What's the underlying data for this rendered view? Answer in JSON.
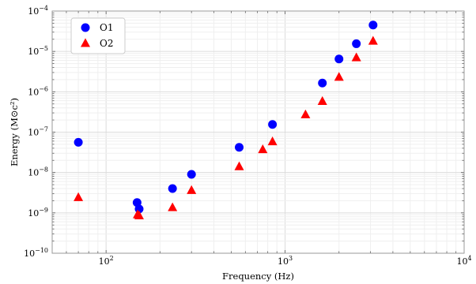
{
  "chart_data": {
    "type": "scatter",
    "title": "",
    "xlabel": "Frequency (Hz)",
    "ylabel": "Energy (M⊙c²)",
    "xscale": "log",
    "yscale": "log",
    "xlim": [
      50,
      10000
    ],
    "ylim": [
      1e-10,
      0.0001
    ],
    "x_tick_labels": [
      {
        "value": 100,
        "base": "10",
        "exp": "2"
      },
      {
        "value": 1000,
        "base": "10",
        "exp": "3"
      },
      {
        "value": 10000,
        "base": "10",
        "exp": "4"
      }
    ],
    "y_tick_labels": [
      {
        "value": 1e-10,
        "base": "10",
        "exp": "−10"
      },
      {
        "value": 1e-09,
        "base": "10",
        "exp": "−9"
      },
      {
        "value": 1e-08,
        "base": "10",
        "exp": "−8"
      },
      {
        "value": 1e-07,
        "base": "10",
        "exp": "−7"
      },
      {
        "value": 1e-06,
        "base": "10",
        "exp": "−6"
      },
      {
        "value": 1e-05,
        "base": "10",
        "exp": "−5"
      },
      {
        "value": 0.0001,
        "base": "10",
        "exp": "−4"
      }
    ],
    "grid": true,
    "legend_position": "top-left",
    "series": [
      {
        "name": "O1",
        "marker": "circle",
        "color": "#0000ff",
        "x": [
          70,
          149,
          153,
          235,
          300,
          554,
          850,
          1615,
          2000,
          2500,
          3100
        ],
        "y": [
          5.6e-08,
          1.8e-09,
          1.25e-09,
          4e-09,
          9e-09,
          4.2e-08,
          1.55e-07,
          1.65e-06,
          6.5e-06,
          1.55e-05,
          4.5e-05
        ]
      },
      {
        "name": "O2",
        "marker": "triangle",
        "color": "#ff0000",
        "x": [
          70,
          150,
          153,
          235,
          300,
          554,
          750,
          850,
          1300,
          1615,
          2000,
          2500,
          3100
        ],
        "y": [
          2.4e-09,
          9e-10,
          8.5e-10,
          1.35e-09,
          3.6e-09,
          1.4e-08,
          3.7e-08,
          5.8e-08,
          2.7e-07,
          5.8e-07,
          2.3e-06,
          7e-06,
          1.8e-05
        ]
      }
    ]
  }
}
